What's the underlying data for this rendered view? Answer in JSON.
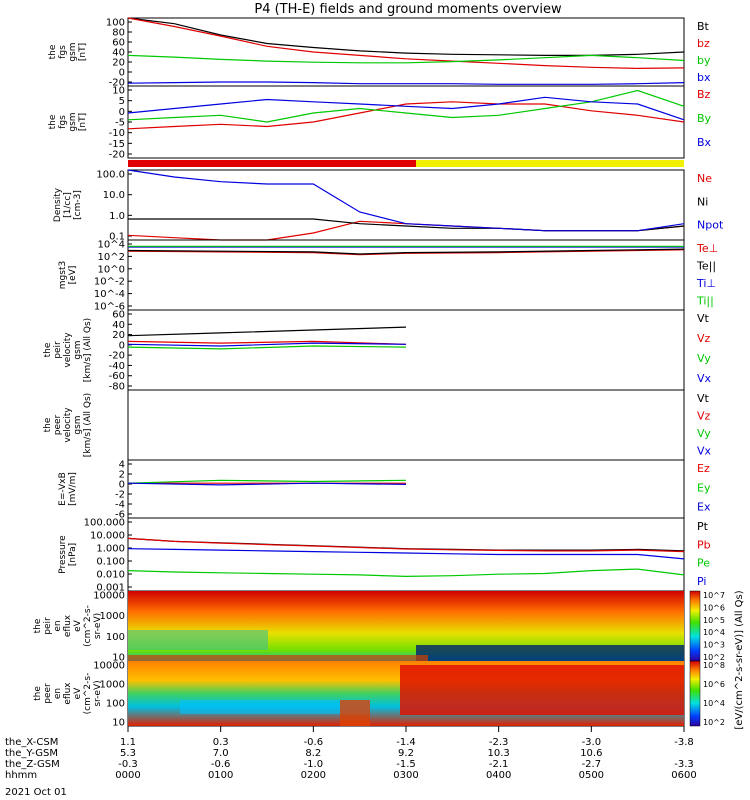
{
  "title": "P4 (TH-E) fields and ground moments overview",
  "colors": {
    "black": "#000000",
    "red": "#e00000",
    "green": "#00c800",
    "blue": "#0000e0",
    "yellow": "#f0f000"
  },
  "chart_data": {
    "type": "line",
    "panels": [
      {
        "ylabel": [
          "the",
          "fgs",
          "gsm",
          "[nT]"
        ],
        "ticks": [
          "100",
          "80",
          "60",
          "40",
          "20",
          "0",
          "-20"
        ],
        "ylim": [
          -20,
          100
        ],
        "series": [
          {
            "name": "Bt",
            "color": "black",
            "x": [
              0,
              30,
              60,
              90,
              120,
              150,
              180,
              210,
              240,
              270,
              300,
              330,
              360
            ],
            "y": [
              100,
              90,
              70,
              55,
              48,
              42,
              38,
              36,
              35,
              34,
              34,
              36,
              40
            ]
          },
          {
            "name": "bz",
            "color": "red",
            "x": [
              0,
              30,
              60,
              90,
              120,
              150,
              180,
              210,
              240,
              270,
              300,
              330,
              360
            ],
            "y": [
              100,
              85,
              68,
              50,
              40,
              34,
              28,
              24,
              20,
              16,
              13,
              11,
              12
            ]
          },
          {
            "name": "by",
            "color": "green",
            "x": [
              0,
              30,
              60,
              90,
              120,
              150,
              180,
              210,
              240,
              270,
              300,
              330,
              360
            ],
            "y": [
              34,
              31,
              27,
              24,
              22,
              21,
              21,
              23,
              26,
              30,
              34,
              30,
              25
            ]
          },
          {
            "name": "bx",
            "color": "blue",
            "x": [
              0,
              30,
              60,
              90,
              120,
              150,
              180,
              210,
              240,
              270,
              300,
              330,
              360
            ],
            "y": [
              -15,
              -14,
              -13,
              -13,
              -14,
              -16,
              -16,
              -16,
              -17,
              -17,
              -17,
              -16,
              -14
            ]
          }
        ]
      },
      {
        "ylabel": [
          "the",
          "fgs",
          "gsm",
          "[nT]"
        ],
        "ticks": [
          "10",
          "5",
          "0",
          "-5",
          "-10",
          "-15",
          "-20"
        ],
        "ylim": [
          -22,
          10
        ],
        "series": [
          {
            "name": "Bz",
            "color": "red",
            "x": [
              0,
              30,
              60,
              90,
              120,
              150,
              180,
              210,
              240,
              270,
              300,
              330,
              360
            ],
            "y": [
              -9,
              -8,
              -7,
              -8,
              -6,
              -2,
              2,
              3,
              2,
              2,
              -1,
              -3,
              -6
            ]
          },
          {
            "name": "By",
            "color": "green",
            "x": [
              0,
              30,
              60,
              90,
              120,
              150,
              180,
              210,
              240,
              270,
              300,
              330,
              360
            ],
            "y": [
              -5,
              -4,
              -3,
              -6,
              -2,
              0,
              -2,
              -4,
              -3,
              0,
              3,
              8,
              1
            ]
          },
          {
            "name": "Bx",
            "color": "blue",
            "x": [
              0,
              30,
              60,
              90,
              120,
              150,
              180,
              210,
              240,
              270,
              300,
              330,
              360
            ],
            "y": [
              -2,
              0,
              2,
              4,
              3,
              2,
              1,
              0,
              2,
              5,
              3,
              2,
              -5
            ]
          }
        ]
      },
      {
        "ylabel": [
          "Density",
          "[1/cc]",
          "[cm-3]"
        ],
        "ticks": [
          "100.0",
          "10.0",
          "1.0",
          "0.1"
        ],
        "ylim": [
          -1,
          2
        ],
        "series": [
          {
            "name": "Ne",
            "color": "red",
            "x": [
              0,
              30,
              60,
              90,
              120,
              150,
              180,
              210,
              240,
              270,
              300,
              330,
              360
            ],
            "y": [
              -0.8,
              -0.9,
              -1.0,
              -1.0,
              -0.7,
              -0.2,
              -0.3,
              -0.4,
              -0.5,
              -0.6,
              -0.6,
              -0.6,
              -0.4
            ]
          },
          {
            "name": "Ni",
            "color": "black",
            "x": [
              0,
              30,
              60,
              90,
              120,
              150,
              180,
              210,
              240,
              270,
              300,
              330,
              360
            ],
            "y": [
              -0.1,
              -0.1,
              -0.1,
              -0.1,
              -0.1,
              -0.3,
              -0.4,
              -0.5,
              -0.5,
              -0.6,
              -0.6,
              -0.6,
              -0.4
            ]
          },
          {
            "name": "Npot",
            "color": "blue",
            "x": [
              0,
              30,
              60,
              90,
              120,
              150,
              180,
              210,
              240,
              270,
              300,
              330,
              360
            ],
            "y": [
              2.0,
              1.7,
              1.5,
              1.4,
              1.4,
              0.2,
              -0.3,
              -0.4,
              -0.5,
              -0.6,
              -0.6,
              -0.6,
              -0.3
            ]
          }
        ]
      },
      {
        "ylabel": [
          "mgst3",
          "[eV]"
        ],
        "ticks": [
          "10^4",
          "10^2",
          "10^0",
          "10^-2",
          "10^-4",
          "10^-6"
        ],
        "ylim": [
          -6,
          4
        ],
        "series": [
          {
            "name": "Te⊥",
            "color": "red",
            "x": [
              0,
              60,
              120,
              150,
              180,
              240,
              300,
              360
            ],
            "y": [
              2.4,
              2.3,
              2.2,
              1.9,
              2.1,
              2.2,
              2.4,
              2.6
            ]
          },
          {
            "name": "Te||",
            "color": "black",
            "x": [
              0,
              60,
              120,
              150,
              180,
              240,
              300,
              360
            ],
            "y": [
              2.5,
              2.4,
              2.3,
              2.0,
              2.2,
              2.3,
              2.5,
              2.7
            ]
          },
          {
            "name": "Ti⊥",
            "color": "blue",
            "x": [
              0,
              60,
              120,
              150,
              180,
              240,
              300,
              360
            ],
            "y": [
              3.0,
              3.0,
              3.0,
              3.0,
              3.0,
              3.0,
              3.0,
              3.0
            ]
          },
          {
            "name": "Ti||",
            "color": "green",
            "x": [
              0,
              60,
              120,
              150,
              180,
              240,
              300,
              360
            ],
            "y": [
              3.1,
              3.1,
              3.1,
              3.1,
              3.1,
              3.1,
              3.1,
              3.1
            ]
          }
        ]
      },
      {
        "ylabel": [
          "the",
          "peir",
          "velocity",
          "gsm",
          "[km/s] (All Qs)"
        ],
        "ticks": [
          "60",
          "40",
          "20",
          "0",
          "-20",
          "-40",
          "-60",
          "-80"
        ],
        "ylim": [
          -80,
          60
        ],
        "series": [
          {
            "name": "Vt",
            "color": "black",
            "x": [
              0,
              60,
              120,
              180
            ],
            "y": [
              15,
              20,
              25,
              30
            ]
          },
          {
            "name": "Vz",
            "color": "red",
            "x": [
              0,
              60,
              120,
              180
            ],
            "y": [
              5,
              2,
              5,
              0
            ]
          },
          {
            "name": "Vy",
            "color": "green",
            "x": [
              0,
              60,
              120,
              180
            ],
            "y": [
              -5,
              -8,
              -3,
              -5
            ]
          },
          {
            "name": "Vx",
            "color": "blue",
            "x": [
              0,
              60,
              120,
              180
            ],
            "y": [
              0,
              -3,
              2,
              0
            ]
          }
        ]
      },
      {
        "ylabel": [
          "the",
          "peer",
          "velocity",
          "gsm",
          "[km/s] (All Qs)"
        ],
        "ticks": [],
        "ylim": [
          0,
          1
        ],
        "series": [
          {
            "name": "Vt",
            "color": "black",
            "x": [],
            "y": []
          },
          {
            "name": "Vz",
            "color": "red",
            "x": [],
            "y": []
          },
          {
            "name": "Vy",
            "color": "green",
            "x": [],
            "y": []
          },
          {
            "name": "Vx",
            "color": "blue",
            "x": [],
            "y": []
          }
        ]
      },
      {
        "ylabel": [
          "E=-VxB",
          "[mV/m]"
        ],
        "ticks": [
          "4",
          "2",
          "0",
          "-2",
          "-4",
          "-6"
        ],
        "ylim": [
          -6,
          4
        ],
        "series": [
          {
            "name": "Ez",
            "color": "red",
            "x": [
              0,
              60,
              120,
              180
            ],
            "y": [
              0,
              0,
              0,
              0
            ]
          },
          {
            "name": "Ey",
            "color": "green",
            "x": [
              0,
              60,
              120,
              180
            ],
            "y": [
              0,
              0.5,
              0.3,
              0.5
            ]
          },
          {
            "name": "Ex",
            "color": "blue",
            "x": [
              0,
              60,
              120,
              180
            ],
            "y": [
              0,
              -0.3,
              0,
              -0.2
            ]
          }
        ]
      },
      {
        "ylabel": [
          "Pressure",
          "[nPa]"
        ],
        "ticks": [
          "100.000",
          "10.000",
          "1.000",
          "0.100",
          "0.010",
          "0.001"
        ],
        "ylim": [
          -3,
          2
        ],
        "series": [
          {
            "name": "Pt",
            "color": "black",
            "x": [
              0,
              30,
              60,
              90,
              120,
              150,
              180,
              210,
              240,
              270,
              300,
              330,
              360
            ],
            "y": [
              0.6,
              0.4,
              0.3,
              0.2,
              0.1,
              0.0,
              -0.1,
              -0.15,
              -0.2,
              -0.2,
              -0.2,
              -0.15,
              -0.25
            ]
          },
          {
            "name": "Pb",
            "color": "red",
            "x": [
              0,
              30,
              60,
              90,
              120,
              150,
              180,
              210,
              240,
              270,
              300,
              330,
              360
            ],
            "y": [
              0.6,
              0.4,
              0.28,
              0.18,
              0.08,
              -0.02,
              -0.12,
              -0.18,
              -0.22,
              -0.25,
              -0.25,
              -0.2,
              -0.3
            ]
          },
          {
            "name": "Pe",
            "color": "green",
            "x": [
              0,
              30,
              60,
              90,
              120,
              150,
              180,
              210,
              240,
              270,
              300,
              330,
              360
            ],
            "y": [
              -1.6,
              -1.7,
              -1.75,
              -1.8,
              -1.85,
              -1.9,
              -2.0,
              -1.95,
              -1.85,
              -1.8,
              -1.6,
              -1.5,
              -1.9
            ]
          },
          {
            "name": "Pi",
            "color": "blue",
            "x": [
              0,
              30,
              60,
              90,
              120,
              150,
              180,
              210,
              240,
              270,
              300,
              330,
              360
            ],
            "y": [
              -0.1,
              -0.15,
              -0.2,
              -0.25,
              -0.3,
              -0.35,
              -0.4,
              -0.45,
              -0.5,
              -0.5,
              -0.5,
              -0.5,
              -0.8
            ]
          }
        ]
      },
      {
        "ylabel": [
          "the",
          "peir",
          "en",
          "eflux",
          "eV",
          "(cm^2-s-",
          "sr-eV)"
        ],
        "ticks": [
          "10000",
          "1000",
          "100",
          "10"
        ],
        "ylim": [
          1,
          4
        ]
      },
      {
        "ylabel": [
          "the",
          "peer",
          "en",
          "eflux",
          "eV",
          "(cm^2-s-",
          "sr-eV)"
        ],
        "ticks": [
          "10000",
          "1000",
          "100",
          "10"
        ],
        "ylim": [
          1,
          4
        ]
      }
    ],
    "colorbars": [
      {
        "ticks": [
          "10^7",
          "10^6",
          "10^5",
          "10^4",
          "10^3",
          "10^2"
        ],
        "label": "[eV/(cm^2-s-sr-eV)] (All Qs)"
      },
      {
        "ticks": [
          "10^8",
          "10^6",
          "10^4",
          "10^2"
        ],
        "label": "[eV/(cm^2-s-sr-eV)]"
      }
    ],
    "axis_rows": [
      {
        "label": "the_X-CSM",
        "values": [
          "1.1",
          "0.3",
          "-0.6",
          "-1.4",
          "-2.3",
          "-3.0",
          "-3.8"
        ]
      },
      {
        "label": "the_Y-GSM",
        "values": [
          "5.3",
          "7.0",
          "8.2",
          "9.2",
          "10.3",
          "10.6",
          ""
        ]
      },
      {
        "label": "the_Z-GSM",
        "values": [
          "-0.3",
          "-0.6",
          "-1.0",
          "-1.5",
          "-2.1",
          "-2.7",
          "-3.3"
        ]
      },
      {
        "label": "hhmm",
        "values": [
          "0000",
          "0100",
          "0200",
          "0300",
          "0400",
          "0500",
          "0600"
        ]
      }
    ],
    "date": "2021 Oct 01"
  }
}
